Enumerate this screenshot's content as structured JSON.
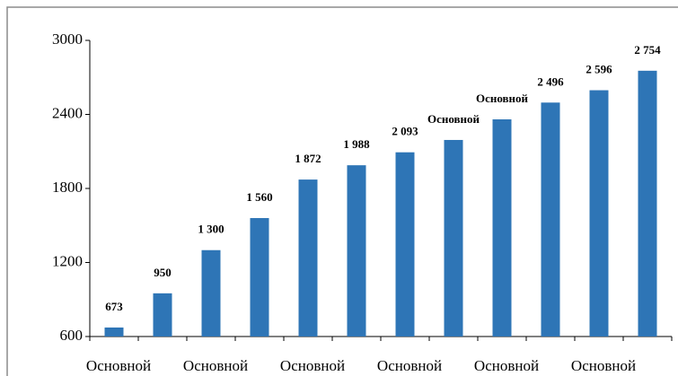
{
  "chart_data": {
    "type": "bar",
    "categories": [
      "Основной",
      null,
      "Основной",
      null,
      "Основной",
      null,
      "Основной",
      null,
      "Основной",
      null,
      "Основной",
      null
    ],
    "values": [
      673,
      950,
      1300,
      1560,
      1872,
      1988,
      2093,
      2193,
      2360,
      2496,
      2596,
      2754
    ],
    "value_labels": [
      "673",
      "950",
      "1 300",
      "1 560",
      "1 872",
      "1 988",
      "2 093",
      "Основной",
      "Основной",
      "2 496",
      "2 596",
      "2 754"
    ],
    "color": "#2e75b6",
    "ylim": [
      600,
      3000
    ],
    "yticks": [
      600,
      1200,
      1800,
      2400,
      3000
    ],
    "grid": false
  }
}
